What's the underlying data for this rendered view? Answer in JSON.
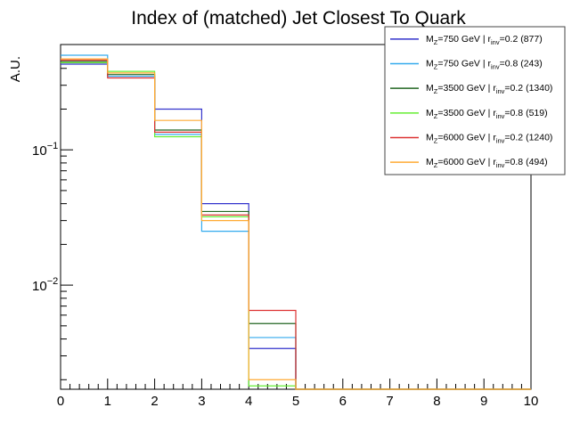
{
  "chart_data": {
    "type": "histogram",
    "title": "Index of (matched) Jet Closest To Quark",
    "xlabel": "",
    "ylabel": "A.U.",
    "xlim": [
      0,
      10
    ],
    "ylim": [
      0.0017,
      0.6
    ],
    "yscale": "log",
    "x_ticks": [
      "0",
      "1",
      "2",
      "3",
      "4",
      "5",
      "6",
      "7",
      "8",
      "9",
      "10"
    ],
    "y_ticks": [
      {
        "value": 0.1,
        "base": "10",
        "exp": "−1"
      },
      {
        "value": 0.01,
        "base": "10",
        "exp": "−2"
      }
    ],
    "bin_edges": [
      0,
      1,
      2,
      3,
      4,
      5,
      6,
      7,
      8,
      9,
      10
    ],
    "legend_position": "top-right",
    "series": [
      {
        "color": "#3333cc",
        "label": {
          "pre": "M",
          "sub1": "Z",
          "mid": "=750 GeV | r",
          "sub2": "inv",
          "post": "=0.2 (877)"
        },
        "values": [
          0.43,
          0.35,
          0.2,
          0.04,
          0.0034,
          0,
          0,
          0,
          0,
          0
        ]
      },
      {
        "color": "#33aaee",
        "label": {
          "pre": "M",
          "sub1": "Z",
          "mid": "=750 GeV | r",
          "sub2": "inv",
          "post": "=0.8 (243)"
        },
        "values": [
          0.5,
          0.35,
          0.13,
          0.025,
          0.0041,
          0,
          0,
          0,
          0,
          0
        ]
      },
      {
        "color": "#226622",
        "label": {
          "pre": "M",
          "sub1": "Z",
          "mid": "=3500 GeV | r",
          "sub2": "inv",
          "post": "=0.2 (1340)"
        },
        "values": [
          0.45,
          0.36,
          0.14,
          0.035,
          0.0052,
          0,
          0,
          0,
          0,
          0
        ]
      },
      {
        "color": "#66ee33",
        "label": {
          "pre": "M",
          "sub1": "Z",
          "mid": "=3500 GeV | r",
          "sub2": "inv",
          "post": "=0.8 (519)"
        },
        "values": [
          0.44,
          0.38,
          0.125,
          0.032,
          0.0018,
          0,
          0,
          0,
          0,
          0
        ]
      },
      {
        "color": "#dd3333",
        "label": {
          "pre": "M",
          "sub1": "Z",
          "mid": "=6000 GeV | r",
          "sub2": "inv",
          "post": "=0.2 (1240)"
        },
        "values": [
          0.46,
          0.34,
          0.135,
          0.033,
          0.0065,
          0,
          0,
          0,
          0,
          0
        ]
      },
      {
        "color": "#ffaa33",
        "label": {
          "pre": "M",
          "sub1": "Z",
          "mid": "=6000 GeV | r",
          "sub2": "inv",
          "post": "=0.8 (494)"
        },
        "values": [
          0.47,
          0.37,
          0.165,
          0.03,
          0.002,
          0,
          0,
          0,
          0,
          0
        ]
      }
    ]
  }
}
